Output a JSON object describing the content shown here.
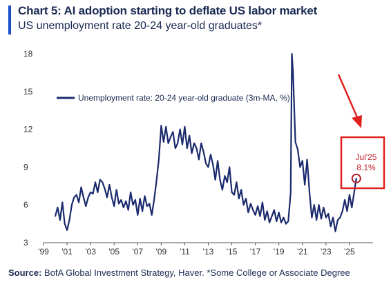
{
  "header": {
    "title": "Chart 5: AI adoption starting to deflate US labor market",
    "subtitle": "US unemployment rate 20-24 year-old graduates*"
  },
  "footer": {
    "source_label": "Source:",
    "source_text": " BofA Global Investment Strategy, Haver. *Some College or Associate Degree"
  },
  "colors": {
    "series": "#1a2a6c",
    "accent": "#1a4fc9",
    "annotation": "#e0201e"
  },
  "chart_data": {
    "type": "line",
    "title": "Chart 5: AI adoption starting to deflate US labor market",
    "subtitle": "US unemployment rate 20-24 year-old graduates*",
    "xlabel": "",
    "ylabel": "",
    "xlim": [
      1999,
      2027
    ],
    "ylim": [
      3,
      18
    ],
    "yticks": [
      3,
      6,
      9,
      12,
      15,
      18
    ],
    "ytick_labels": [
      "3",
      "6",
      "9",
      "12",
      "15",
      "18"
    ],
    "xticks": [
      1999,
      2001,
      2003,
      2005,
      2007,
      2009,
      2011,
      2013,
      2015,
      2017,
      2019,
      2021,
      2023,
      2025
    ],
    "xtick_labels": [
      "'99",
      "'01",
      "'03",
      "'05",
      "'07",
      "'09",
      "'11",
      "'13",
      "'15",
      "'17",
      "'19",
      "'21",
      "'23",
      "'25"
    ],
    "grid": false,
    "legend_position": "top-left",
    "series": [
      {
        "name": "Unemployment rate: 20-24 year-old graduate (3m-MA, %)",
        "x": [
          2000.0,
          2000.2,
          2000.4,
          2000.6,
          2000.8,
          2001.0,
          2001.2,
          2001.4,
          2001.6,
          2001.8,
          2002.0,
          2002.2,
          2002.4,
          2002.6,
          2002.8,
          2003.0,
          2003.2,
          2003.4,
          2003.6,
          2003.8,
          2004.0,
          2004.2,
          2004.4,
          2004.6,
          2004.8,
          2005.0,
          2005.2,
          2005.4,
          2005.6,
          2005.8,
          2006.0,
          2006.2,
          2006.4,
          2006.6,
          2006.8,
          2007.0,
          2007.2,
          2007.4,
          2007.6,
          2007.8,
          2008.0,
          2008.2,
          2008.4,
          2008.6,
          2008.8,
          2009.0,
          2009.2,
          2009.4,
          2009.6,
          2009.8,
          2010.0,
          2010.2,
          2010.4,
          2010.6,
          2010.8,
          2011.0,
          2011.2,
          2011.4,
          2011.6,
          2011.8,
          2012.0,
          2012.2,
          2012.4,
          2012.6,
          2012.8,
          2013.0,
          2013.2,
          2013.4,
          2013.6,
          2013.8,
          2014.0,
          2014.2,
          2014.4,
          2014.6,
          2014.8,
          2015.0,
          2015.2,
          2015.4,
          2015.6,
          2015.8,
          2016.0,
          2016.2,
          2016.4,
          2016.6,
          2016.8,
          2017.0,
          2017.2,
          2017.4,
          2017.6,
          2017.8,
          2018.0,
          2018.2,
          2018.4,
          2018.6,
          2018.8,
          2019.0,
          2019.2,
          2019.4,
          2019.6,
          2019.8,
          2020.0,
          2020.1,
          2020.2,
          2020.4,
          2020.6,
          2020.8,
          2021.0,
          2021.2,
          2021.4,
          2021.6,
          2021.8,
          2022.0,
          2022.2,
          2022.4,
          2022.6,
          2022.8,
          2023.0,
          2023.2,
          2023.4,
          2023.6,
          2023.8,
          2024.0,
          2024.2,
          2024.4,
          2024.6,
          2024.8,
          2025.0,
          2025.2,
          2025.4,
          2025.58
        ],
        "y": [
          5.1,
          5.8,
          4.8,
          6.2,
          4.5,
          4.0,
          4.8,
          6.0,
          6.6,
          6.8,
          6.2,
          7.4,
          6.6,
          5.9,
          6.6,
          7.0,
          6.9,
          7.8,
          7.0,
          8.0,
          7.8,
          7.3,
          6.6,
          7.6,
          6.6,
          5.9,
          7.2,
          6.1,
          6.4,
          5.8,
          6.3,
          5.6,
          7.0,
          6.0,
          6.4,
          5.2,
          6.5,
          5.5,
          6.7,
          5.9,
          6.1,
          5.2,
          6.4,
          7.9,
          9.6,
          12.3,
          11.0,
          12.2,
          10.9,
          11.4,
          11.8,
          10.5,
          10.9,
          12.0,
          10.8,
          12.2,
          10.5,
          11.5,
          10.1,
          10.9,
          10.5,
          9.6,
          10.9,
          10.2,
          9.3,
          9.0,
          10.0,
          9.2,
          8.0,
          9.5,
          8.0,
          7.2,
          8.3,
          7.8,
          9.0,
          7.0,
          6.8,
          7.8,
          6.5,
          7.2,
          6.0,
          6.5,
          5.4,
          6.1,
          5.6,
          5.2,
          5.9,
          5.1,
          6.2,
          4.8,
          5.5,
          4.6,
          5.1,
          5.6,
          4.7,
          5.4,
          4.6,
          5.0,
          4.5,
          4.7,
          7.0,
          18.0,
          16.5,
          11.0,
          10.4,
          9.0,
          9.5,
          7.6,
          9.6,
          7.0,
          5.0,
          6.0,
          4.8,
          6.0,
          4.9,
          5.8,
          5.0,
          5.3,
          4.3,
          5.0,
          3.9,
          4.8,
          5.0,
          5.5,
          6.4,
          5.5,
          6.8,
          5.8,
          7.0,
          8.1
        ]
      }
    ],
    "annotations": [
      {
        "label_line1": "Jul'25",
        "label_line2": "8.1%",
        "x": 2025.58,
        "y": 8.1
      }
    ]
  }
}
